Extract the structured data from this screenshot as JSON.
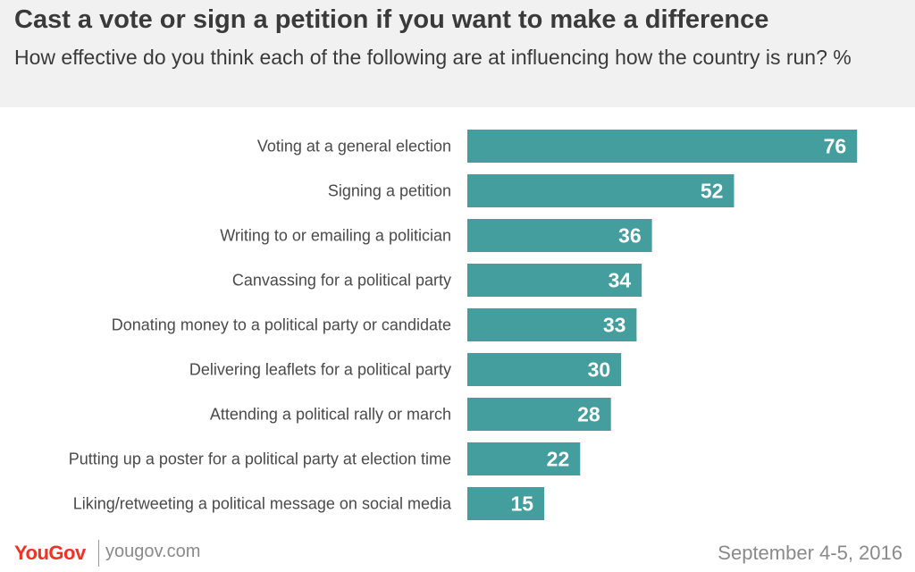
{
  "title": "Cast a vote or sign a petition if you want to make a difference",
  "subtitle": "How effective do you think each of the following are at influencing how the country is run? %",
  "chart_data": {
    "type": "bar",
    "orientation": "horizontal",
    "categories": [
      "Voting at a general election",
      "Signing a petition",
      "Writing to or emailing a politician",
      "Canvassing for a political party",
      "Donating money to a political party or candidate",
      "Delivering leaflets for a political party",
      "Attending a political rally or march",
      "Putting up a poster for a political party at election time",
      "Liking/retweeting a political message on social media"
    ],
    "values": [
      76,
      52,
      36,
      34,
      33,
      30,
      28,
      22,
      15
    ],
    "bar_color": "#449e9e",
    "value_label_color": "#ffffff",
    "grid": false,
    "legend": "none"
  },
  "footer": {
    "logo": "YouGov",
    "url": "yougov.com",
    "date": "September 4-5, 2016"
  },
  "colors": {
    "header_background": "#f1f1f1",
    "title_text": "#3a3a3a",
    "label_text": "#4a4a4a",
    "logo": "#ee3224",
    "footer_text": "#8a8a8a"
  }
}
